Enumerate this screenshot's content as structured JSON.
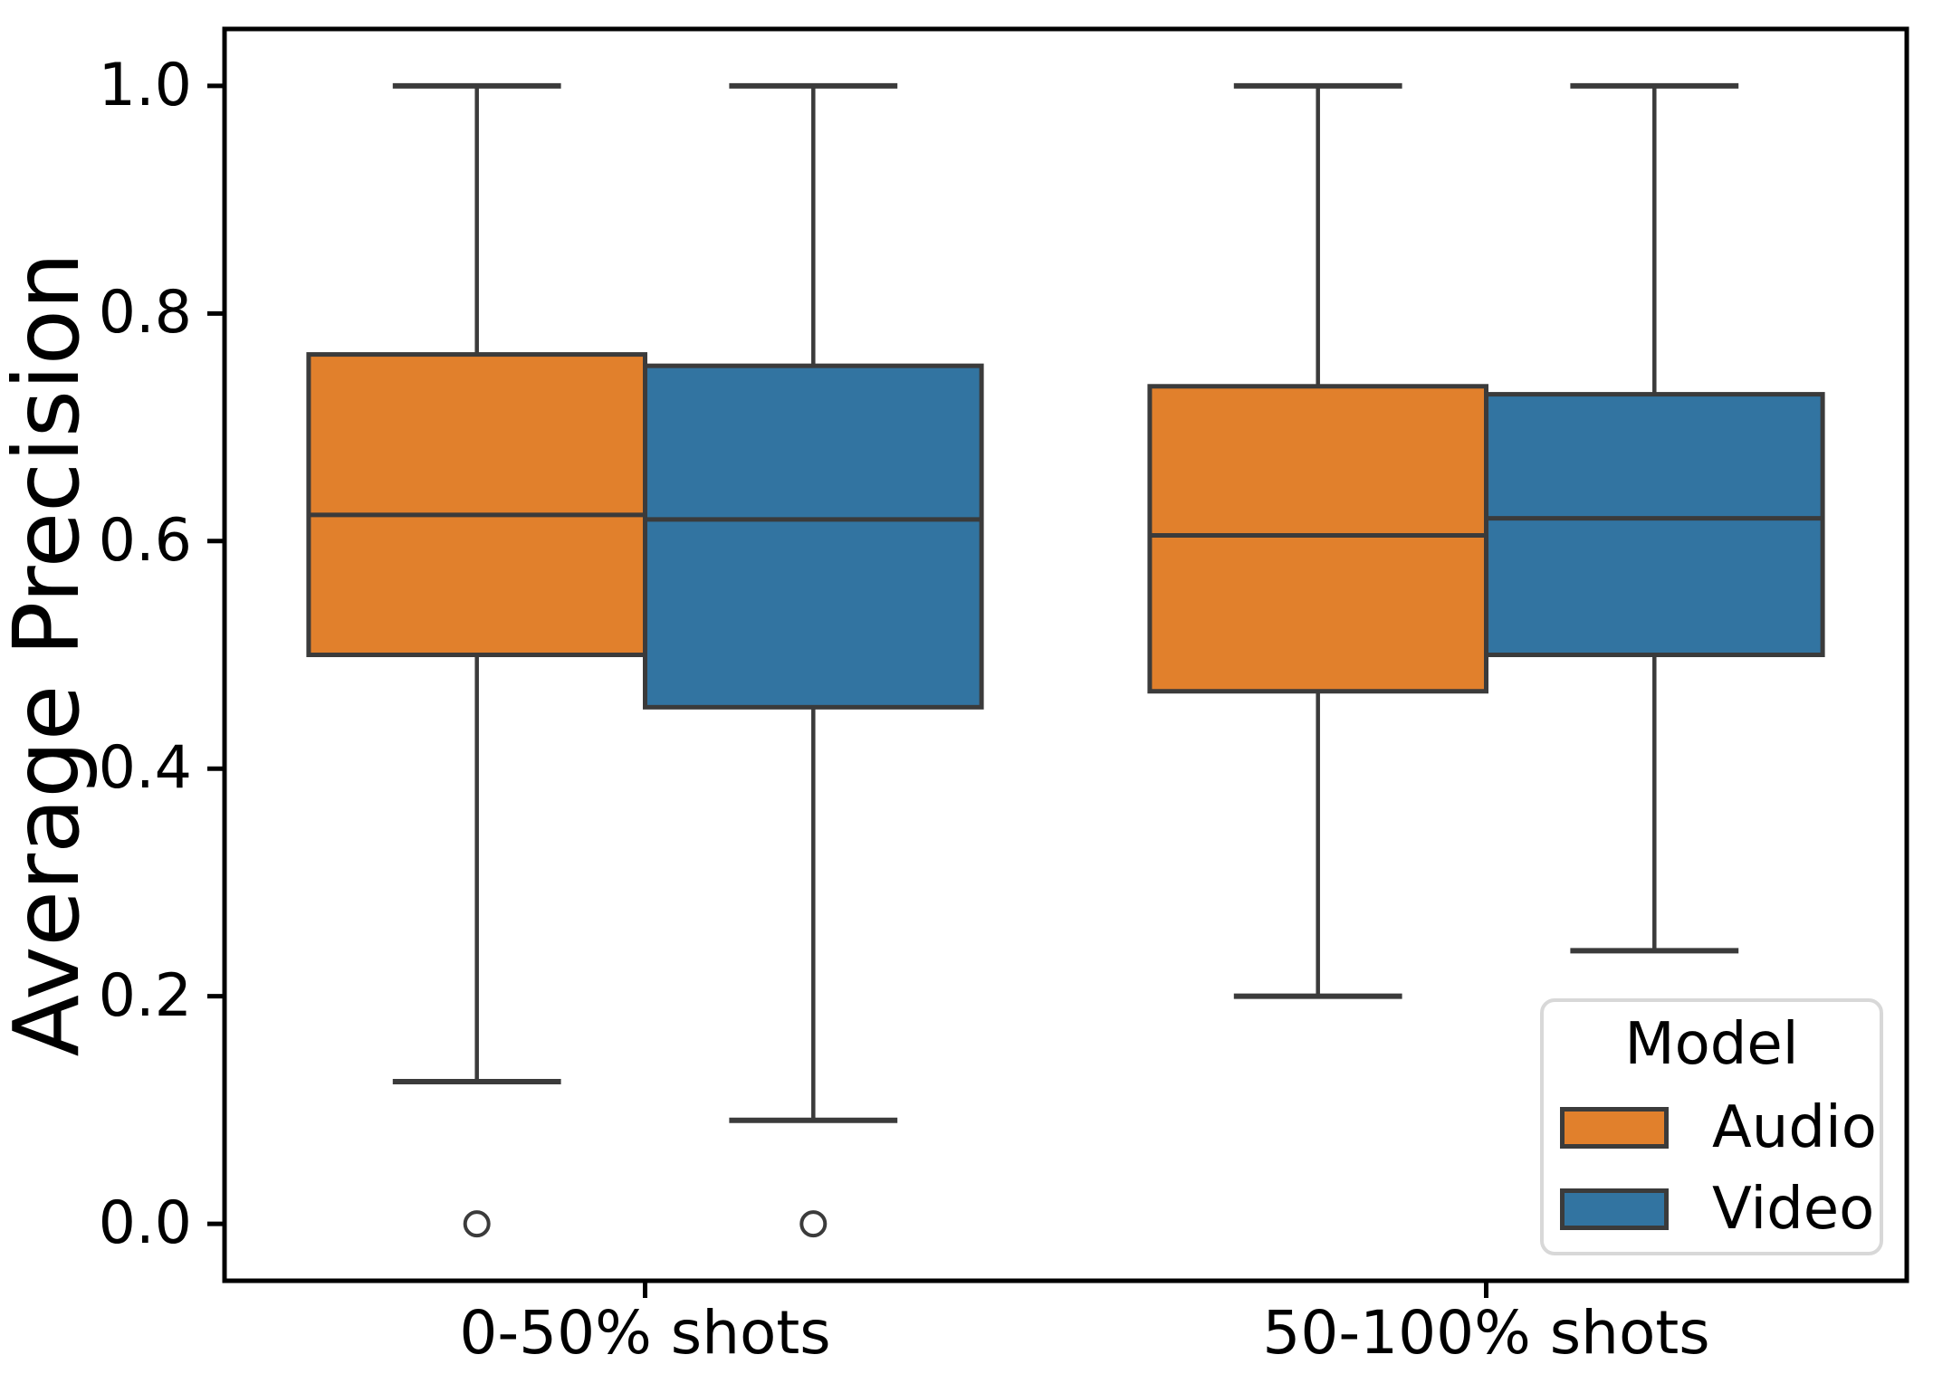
{
  "figure": {
    "background": "#ffffff"
  },
  "chart_data": {
    "type": "boxplot",
    "title": "",
    "xlabel": "",
    "ylabel": "Average Precision",
    "categories": [
      "0-50% shots",
      "50-100% shots"
    ],
    "ytick_labels": [
      "0.0",
      "0.2",
      "0.4",
      "0.6",
      "0.8",
      "1.0"
    ],
    "ylim": [
      -0.05,
      1.05
    ],
    "xlim": [
      -0.5,
      1.5
    ],
    "grid": false,
    "group_positions": [
      0,
      1
    ],
    "dodge_offset": 0.2,
    "box_width": 0.4,
    "cap_width": 0.2,
    "legend": {
      "title": "Model",
      "position": "lower right"
    },
    "series": [
      {
        "name": "Audio",
        "color": "#e1802c",
        "boxes": [
          {
            "category": "0-50% shots",
            "whislo": 0.125,
            "q1": 0.5,
            "med": 0.623,
            "q3": 0.764,
            "whishi": 1.0,
            "outliers": [
              0.0
            ]
          },
          {
            "category": "50-100% shots",
            "whislo": 0.2,
            "q1": 0.468,
            "med": 0.605,
            "q3": 0.736,
            "whishi": 1.0,
            "outliers": []
          }
        ]
      },
      {
        "name": "Video",
        "color": "#3274a1",
        "boxes": [
          {
            "category": "0-50% shots",
            "whislo": 0.091,
            "q1": 0.454,
            "med": 0.619,
            "q3": 0.754,
            "whishi": 1.0,
            "outliers": [
              0.0
            ]
          },
          {
            "category": "50-100% shots",
            "whislo": 0.24,
            "q1": 0.5,
            "med": 0.62,
            "q3": 0.729,
            "whishi": 1.0,
            "outliers": []
          }
        ]
      }
    ],
    "styles": {
      "edge_color": "#3b3b3b",
      "spine_color": "#000000",
      "outlier_fill": "#ffffff",
      "legend_border": "#d8d8d8",
      "background": "#ffffff"
    }
  }
}
